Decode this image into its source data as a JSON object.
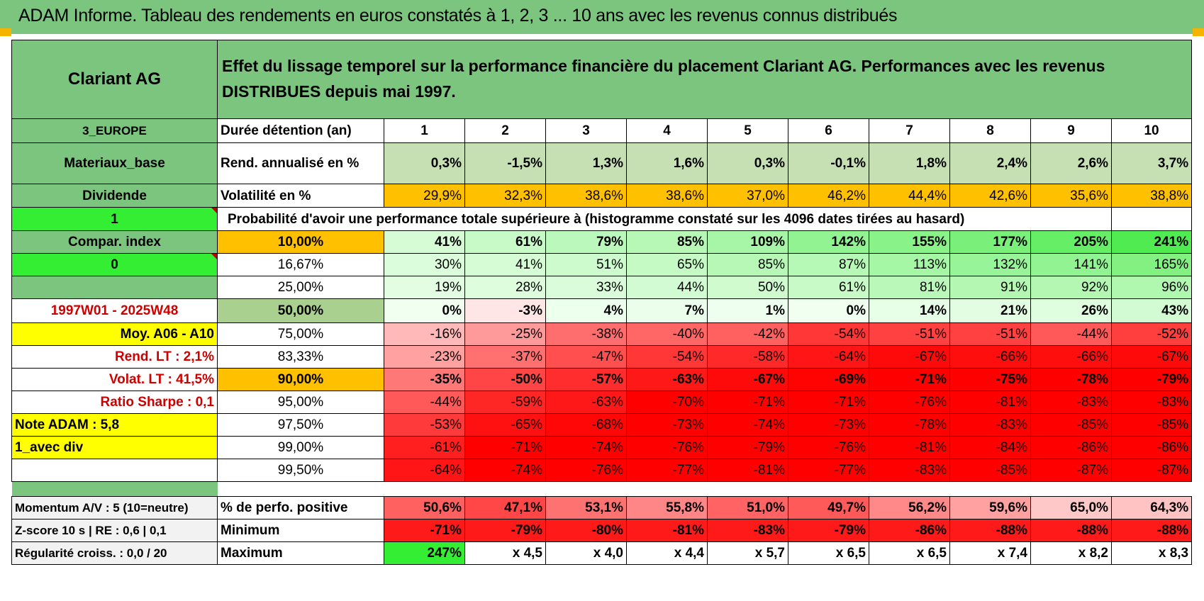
{
  "header": {
    "title": "ADAM Informe. Tableau des rendements en euros constatés à 1, 2, 3 ... 10 ans avec les revenus connus distribués"
  },
  "left": {
    "name": "Clariant AG",
    "region": "3_EUROPE",
    "sector": "Materiaux_base",
    "type": "Dividende",
    "flag1": "1",
    "compar": "Compar. index",
    "flag0": "0",
    "period": "1997W01 - 2025W48",
    "moy": "Moy. A06 - A10",
    "rend_lt": "Rend. LT :    2,1%",
    "volat_lt": "Volat. LT :    41,5%",
    "sharpe": "Ratio Sharpe :     0,1",
    "note": "Note ADAM : 5,8",
    "avec_div": "1_avec div",
    "momentum": "Momentum A/V : 5 (10=neutre)",
    "zscore": "Z-score 10 s | RE : 0,6 | 0,1",
    "regularite": "Régularité croiss. : 0,0 / 20"
  },
  "desc": "Effet du lissage temporel sur la performance financière du placement Clariant AG. Performances avec les revenus DISTRIBUES depuis mai 1997.",
  "row_labels": {
    "duree": "Durée détention (an)",
    "rend": "Rend. annualisé en %",
    "vol": "Volatilité en %",
    "proba": "Probabilité d'avoir une performance totale supérieure à (histogramme constaté sur les 4096 dates tirées au hasard)",
    "pct_pos": "% de perfo. positive",
    "minimum": "Minimum",
    "maximum": "Maximum"
  },
  "years": [
    "1",
    "2",
    "3",
    "4",
    "5",
    "6",
    "7",
    "8",
    "9",
    "10"
  ],
  "rend": [
    "0,3%",
    "-1,5%",
    "1,3%",
    "1,6%",
    "0,3%",
    "-0,1%",
    "1,8%",
    "2,4%",
    "2,6%",
    "3,7%"
  ],
  "vol": [
    "29,9%",
    "32,3%",
    "38,6%",
    "38,6%",
    "37,0%",
    "46,2%",
    "44,4%",
    "42,6%",
    "35,6%",
    "38,8%"
  ],
  "dist": [
    {
      "p": "10,00%",
      "v": [
        "41%",
        "61%",
        "79%",
        "85%",
        "109%",
        "142%",
        "155%",
        "177%",
        "205%",
        "241%"
      ]
    },
    {
      "p": "16,67%",
      "v": [
        "30%",
        "41%",
        "51%",
        "65%",
        "85%",
        "87%",
        "113%",
        "132%",
        "141%",
        "165%"
      ]
    },
    {
      "p": "25,00%",
      "v": [
        "19%",
        "28%",
        "33%",
        "44%",
        "50%",
        "61%",
        "81%",
        "91%",
        "92%",
        "96%"
      ]
    },
    {
      "p": "50,00%",
      "v": [
        "0%",
        "-3%",
        "4%",
        "7%",
        "1%",
        "0%",
        "14%",
        "21%",
        "26%",
        "43%"
      ]
    },
    {
      "p": "75,00%",
      "v": [
        "-16%",
        "-25%",
        "-38%",
        "-40%",
        "-42%",
        "-54%",
        "-51%",
        "-51%",
        "-44%",
        "-52%"
      ]
    },
    {
      "p": "83,33%",
      "v": [
        "-23%",
        "-37%",
        "-47%",
        "-54%",
        "-58%",
        "-64%",
        "-67%",
        "-66%",
        "-66%",
        "-67%"
      ]
    },
    {
      "p": "90,00%",
      "v": [
        "-35%",
        "-50%",
        "-57%",
        "-63%",
        "-67%",
        "-69%",
        "-71%",
        "-75%",
        "-78%",
        "-79%"
      ]
    },
    {
      "p": "95,00%",
      "v": [
        "-44%",
        "-59%",
        "-63%",
        "-70%",
        "-71%",
        "-71%",
        "-76%",
        "-81%",
        "-83%",
        "-83%"
      ]
    },
    {
      "p": "97,50%",
      "v": [
        "-53%",
        "-65%",
        "-68%",
        "-73%",
        "-74%",
        "-73%",
        "-78%",
        "-83%",
        "-85%",
        "-85%"
      ]
    },
    {
      "p": "99,00%",
      "v": [
        "-61%",
        "-71%",
        "-74%",
        "-76%",
        "-79%",
        "-76%",
        "-81%",
        "-84%",
        "-86%",
        "-86%"
      ]
    },
    {
      "p": "99,50%",
      "v": [
        "-64%",
        "-74%",
        "-76%",
        "-77%",
        "-81%",
        "-77%",
        "-83%",
        "-85%",
        "-87%",
        "-87%"
      ]
    }
  ],
  "pct_pos": [
    "50,6%",
    "47,1%",
    "53,1%",
    "55,8%",
    "51,0%",
    "49,7%",
    "56,2%",
    "59,6%",
    "65,0%",
    "64,3%"
  ],
  "minimum": [
    "-71%",
    "-79%",
    "-80%",
    "-81%",
    "-83%",
    "-79%",
    "-86%",
    "-88%",
    "-88%",
    "-88%"
  ],
  "maximum": [
    "247%",
    "x 4,5",
    "x 4,0",
    "x 4,4",
    "x 5,7",
    "x 6,5",
    "x 6,5",
    "x 7,4",
    "x 8,2",
    "x 8,3"
  ],
  "colors": {
    "header_green": "#7cc57f",
    "orange": "#ffc000",
    "yellow": "#ffff00",
    "bright_green": "#33ee33",
    "red": "#ff0000"
  }
}
